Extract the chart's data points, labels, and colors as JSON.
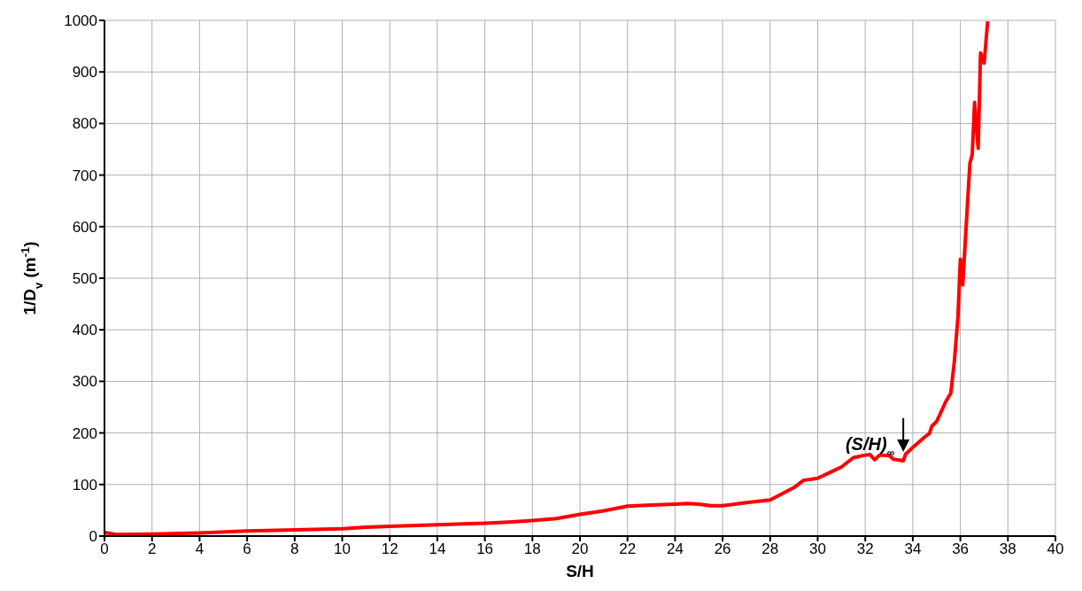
{
  "chart_data": {
    "type": "line",
    "xlabel": "S/H",
    "ylabel": "1/D$_{v}$ (m$^{-1}$)",
    "x": [
      0,
      0.5,
      2,
      4,
      6,
      8,
      10,
      11,
      12,
      14,
      16,
      17,
      18,
      19,
      20,
      21,
      22,
      23,
      24,
      24.5,
      25,
      25.5,
      26,
      27,
      28,
      28.5,
      29,
      29.4,
      30,
      30.5,
      31,
      31.5,
      32,
      32.2,
      32.4,
      32.6,
      33,
      33.2,
      33.6,
      33.7,
      34,
      34.5,
      34.7,
      34.8,
      35,
      35.4,
      35.6,
      35.75,
      35.9,
      36,
      36.1,
      36.4,
      36.5,
      36.6,
      36.75,
      36.85,
      37,
      37.15
    ],
    "series": [
      {
        "color": "#ff0000",
        "values": [
          7,
          3,
          4,
          6,
          10,
          12,
          14,
          17,
          19,
          22,
          25,
          27,
          30,
          34,
          42,
          49,
          58,
          60,
          62,
          63,
          62,
          59,
          59,
          65,
          70,
          82,
          94,
          108,
          112,
          123,
          134,
          152,
          157,
          158,
          148,
          157,
          156,
          149,
          146,
          159,
          172,
          192,
          199,
          213,
          222,
          262,
          277,
          340,
          425,
          537,
          487,
          722,
          740,
          841,
          752,
          937,
          917,
          998
        ]
      }
    ],
    "xlim": [
      0,
      40
    ],
    "xticks": [
      0,
      2,
      4,
      6,
      8,
      10,
      12,
      14,
      16,
      18,
      20,
      22,
      24,
      26,
      28,
      30,
      32,
      34,
      36,
      38,
      40
    ],
    "ylim": [
      0,
      1000
    ],
    "yticks": [
      0,
      100,
      200,
      300,
      400,
      500,
      600,
      700,
      800,
      900,
      1000
    ],
    "grid": true,
    "marker": "none",
    "line_style": "solid",
    "annotations": [
      {
        "text": "(S/H)$_{∞}$",
        "x": 33.6,
        "y": 160
      }
    ]
  }
}
